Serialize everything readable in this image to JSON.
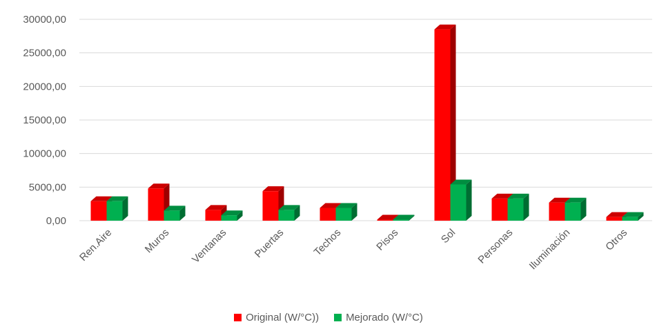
{
  "chart_data": {
    "type": "bar",
    "categories": [
      "Ren.Aire",
      "Muros",
      "Ventanas",
      "Puertas",
      "Techos",
      "Pisos",
      "Sol",
      "Personas",
      "Iluminación",
      "Otros"
    ],
    "series": [
      {
        "name": "Original (W/°C))",
        "color": "#ff0000",
        "values": [
          2900,
          4800,
          1600,
          4400,
          1900,
          150,
          28500,
          3300,
          2700,
          550
        ]
      },
      {
        "name": "Mejorado (W/°C)",
        "color": "#00b050",
        "values": [
          2900,
          1500,
          800,
          1600,
          1900,
          150,
          5400,
          3300,
          2700,
          550
        ]
      }
    ],
    "y_ticks": [
      "0,00",
      "5000,00",
      "10000,00",
      "15000,00",
      "20000,00",
      "25000,00",
      "30000,00"
    ],
    "ylim": [
      0,
      30000
    ],
    "grid": true,
    "legend_position": "bottom",
    "bar_style": "3d"
  }
}
